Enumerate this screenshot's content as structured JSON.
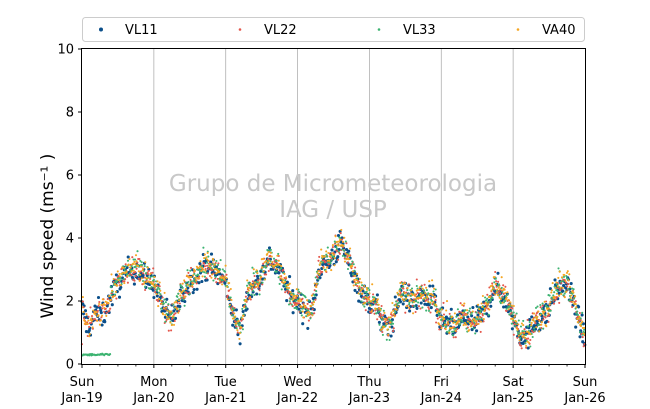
{
  "chart_data": {
    "type": "scatter",
    "title": "",
    "xlabel": "",
    "ylabel": "Wind speed (ms⁻¹ )",
    "ylim": [
      0,
      10
    ],
    "yticks": [
      "0",
      "2",
      "4",
      "6",
      "8",
      "10"
    ],
    "xlim_days": [
      19,
      26
    ],
    "xtick_days": [
      "Sun",
      "Mon",
      "Tue",
      "Wed",
      "Thu",
      "Fri",
      "Sat",
      "Sun"
    ],
    "xtick_dates": [
      "Jan-19",
      "Jan-20",
      "Jan-21",
      "Jan-22",
      "Jan-23",
      "Jan-24",
      "Jan-25",
      "Jan-26"
    ],
    "grid": "vertical",
    "legend_position": "top",
    "watermark": [
      "Grupo de Micrometeorologia",
      "IAG / USP"
    ],
    "series": [
      {
        "name": "VL11",
        "color": "#0b4f8a"
      },
      {
        "name": "VL22",
        "color": "#e4574c"
      },
      {
        "name": "VL33",
        "color": "#3cb371"
      },
      {
        "name": "VA40",
        "color": "#f5a623"
      }
    ],
    "mean_profile": {
      "day": [
        19.0,
        19.1,
        19.2,
        19.3,
        19.45,
        19.6,
        19.75,
        19.9,
        20.0,
        20.1,
        20.2,
        20.3,
        20.45,
        20.6,
        20.75,
        20.9,
        21.0,
        21.1,
        21.2,
        21.3,
        21.45,
        21.6,
        21.75,
        21.9,
        22.0,
        22.1,
        22.2,
        22.3,
        22.45,
        22.6,
        22.75,
        22.9,
        23.0,
        23.1,
        23.2,
        23.3,
        23.45,
        23.6,
        23.75,
        23.9,
        24.0,
        24.1,
        24.2,
        24.3,
        24.45,
        24.6,
        24.75,
        24.9,
        25.0,
        25.1,
        25.2,
        25.3,
        25.45,
        25.6,
        25.75,
        25.9,
        26.0
      ],
      "speed": [
        1.8,
        1.2,
        1.7,
        1.6,
        2.4,
        2.9,
        3.1,
        2.7,
        2.6,
        2.0,
        1.5,
        1.7,
        2.5,
        2.9,
        3.2,
        2.9,
        2.6,
        1.6,
        1.0,
        2.3,
        2.6,
        3.4,
        3.0,
        2.2,
        2.0,
        1.8,
        1.6,
        3.1,
        3.3,
        3.9,
        3.1,
        2.2,
        2.0,
        1.9,
        1.2,
        1.3,
        2.3,
        2.0,
        2.2,
        2.0,
        1.4,
        1.3,
        1.2,
        1.5,
        1.3,
        1.7,
        2.5,
        2.1,
        1.5,
        1.0,
        0.9,
        1.4,
        1.6,
        2.4,
        2.6,
        1.5,
        0.8
      ]
    },
    "offset_segment": {
      "series": "VL33",
      "day_range": [
        19.0,
        19.4
      ],
      "speed": 0.3
    }
  }
}
